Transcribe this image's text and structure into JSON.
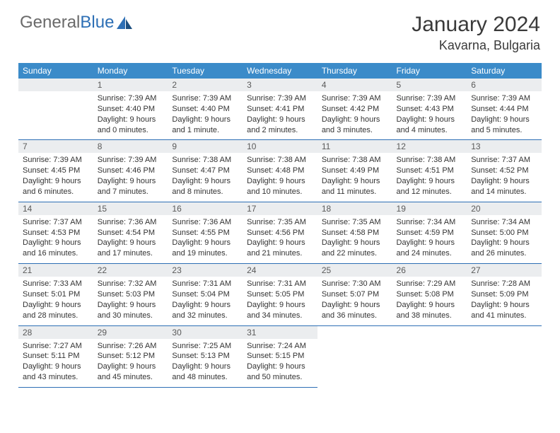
{
  "brand": {
    "part1": "General",
    "part2": "Blue"
  },
  "title": "January 2024",
  "location": "Kavarna, Bulgaria",
  "dayHeaders": [
    "Sunday",
    "Monday",
    "Tuesday",
    "Wednesday",
    "Thursday",
    "Friday",
    "Saturday"
  ],
  "colors": {
    "headerBg": "#3b8bc9",
    "dayNumBg": "#ebedef",
    "rowDivider": "#2d6fb5",
    "brandBlue": "#2d6fb5"
  },
  "weeks": [
    [
      null,
      {
        "n": "1",
        "sr": "Sunrise: 7:39 AM",
        "ss": "Sunset: 4:40 PM",
        "d1": "Daylight: 9 hours",
        "d2": "and 0 minutes."
      },
      {
        "n": "2",
        "sr": "Sunrise: 7:39 AM",
        "ss": "Sunset: 4:40 PM",
        "d1": "Daylight: 9 hours",
        "d2": "and 1 minute."
      },
      {
        "n": "3",
        "sr": "Sunrise: 7:39 AM",
        "ss": "Sunset: 4:41 PM",
        "d1": "Daylight: 9 hours",
        "d2": "and 2 minutes."
      },
      {
        "n": "4",
        "sr": "Sunrise: 7:39 AM",
        "ss": "Sunset: 4:42 PM",
        "d1": "Daylight: 9 hours",
        "d2": "and 3 minutes."
      },
      {
        "n": "5",
        "sr": "Sunrise: 7:39 AM",
        "ss": "Sunset: 4:43 PM",
        "d1": "Daylight: 9 hours",
        "d2": "and 4 minutes."
      },
      {
        "n": "6",
        "sr": "Sunrise: 7:39 AM",
        "ss": "Sunset: 4:44 PM",
        "d1": "Daylight: 9 hours",
        "d2": "and 5 minutes."
      }
    ],
    [
      {
        "n": "7",
        "sr": "Sunrise: 7:39 AM",
        "ss": "Sunset: 4:45 PM",
        "d1": "Daylight: 9 hours",
        "d2": "and 6 minutes."
      },
      {
        "n": "8",
        "sr": "Sunrise: 7:39 AM",
        "ss": "Sunset: 4:46 PM",
        "d1": "Daylight: 9 hours",
        "d2": "and 7 minutes."
      },
      {
        "n": "9",
        "sr": "Sunrise: 7:38 AM",
        "ss": "Sunset: 4:47 PM",
        "d1": "Daylight: 9 hours",
        "d2": "and 8 minutes."
      },
      {
        "n": "10",
        "sr": "Sunrise: 7:38 AM",
        "ss": "Sunset: 4:48 PM",
        "d1": "Daylight: 9 hours",
        "d2": "and 10 minutes."
      },
      {
        "n": "11",
        "sr": "Sunrise: 7:38 AM",
        "ss": "Sunset: 4:49 PM",
        "d1": "Daylight: 9 hours",
        "d2": "and 11 minutes."
      },
      {
        "n": "12",
        "sr": "Sunrise: 7:38 AM",
        "ss": "Sunset: 4:51 PM",
        "d1": "Daylight: 9 hours",
        "d2": "and 12 minutes."
      },
      {
        "n": "13",
        "sr": "Sunrise: 7:37 AM",
        "ss": "Sunset: 4:52 PM",
        "d1": "Daylight: 9 hours",
        "d2": "and 14 minutes."
      }
    ],
    [
      {
        "n": "14",
        "sr": "Sunrise: 7:37 AM",
        "ss": "Sunset: 4:53 PM",
        "d1": "Daylight: 9 hours",
        "d2": "and 16 minutes."
      },
      {
        "n": "15",
        "sr": "Sunrise: 7:36 AM",
        "ss": "Sunset: 4:54 PM",
        "d1": "Daylight: 9 hours",
        "d2": "and 17 minutes."
      },
      {
        "n": "16",
        "sr": "Sunrise: 7:36 AM",
        "ss": "Sunset: 4:55 PM",
        "d1": "Daylight: 9 hours",
        "d2": "and 19 minutes."
      },
      {
        "n": "17",
        "sr": "Sunrise: 7:35 AM",
        "ss": "Sunset: 4:56 PM",
        "d1": "Daylight: 9 hours",
        "d2": "and 21 minutes."
      },
      {
        "n": "18",
        "sr": "Sunrise: 7:35 AM",
        "ss": "Sunset: 4:58 PM",
        "d1": "Daylight: 9 hours",
        "d2": "and 22 minutes."
      },
      {
        "n": "19",
        "sr": "Sunrise: 7:34 AM",
        "ss": "Sunset: 4:59 PM",
        "d1": "Daylight: 9 hours",
        "d2": "and 24 minutes."
      },
      {
        "n": "20",
        "sr": "Sunrise: 7:34 AM",
        "ss": "Sunset: 5:00 PM",
        "d1": "Daylight: 9 hours",
        "d2": "and 26 minutes."
      }
    ],
    [
      {
        "n": "21",
        "sr": "Sunrise: 7:33 AM",
        "ss": "Sunset: 5:01 PM",
        "d1": "Daylight: 9 hours",
        "d2": "and 28 minutes."
      },
      {
        "n": "22",
        "sr": "Sunrise: 7:32 AM",
        "ss": "Sunset: 5:03 PM",
        "d1": "Daylight: 9 hours",
        "d2": "and 30 minutes."
      },
      {
        "n": "23",
        "sr": "Sunrise: 7:31 AM",
        "ss": "Sunset: 5:04 PM",
        "d1": "Daylight: 9 hours",
        "d2": "and 32 minutes."
      },
      {
        "n": "24",
        "sr": "Sunrise: 7:31 AM",
        "ss": "Sunset: 5:05 PM",
        "d1": "Daylight: 9 hours",
        "d2": "and 34 minutes."
      },
      {
        "n": "25",
        "sr": "Sunrise: 7:30 AM",
        "ss": "Sunset: 5:07 PM",
        "d1": "Daylight: 9 hours",
        "d2": "and 36 minutes."
      },
      {
        "n": "26",
        "sr": "Sunrise: 7:29 AM",
        "ss": "Sunset: 5:08 PM",
        "d1": "Daylight: 9 hours",
        "d2": "and 38 minutes."
      },
      {
        "n": "27",
        "sr": "Sunrise: 7:28 AM",
        "ss": "Sunset: 5:09 PM",
        "d1": "Daylight: 9 hours",
        "d2": "and 41 minutes."
      }
    ],
    [
      {
        "n": "28",
        "sr": "Sunrise: 7:27 AM",
        "ss": "Sunset: 5:11 PM",
        "d1": "Daylight: 9 hours",
        "d2": "and 43 minutes."
      },
      {
        "n": "29",
        "sr": "Sunrise: 7:26 AM",
        "ss": "Sunset: 5:12 PM",
        "d1": "Daylight: 9 hours",
        "d2": "and 45 minutes."
      },
      {
        "n": "30",
        "sr": "Sunrise: 7:25 AM",
        "ss": "Sunset: 5:13 PM",
        "d1": "Daylight: 9 hours",
        "d2": "and 48 minutes."
      },
      {
        "n": "31",
        "sr": "Sunrise: 7:24 AM",
        "ss": "Sunset: 5:15 PM",
        "d1": "Daylight: 9 hours",
        "d2": "and 50 minutes."
      },
      null,
      null,
      null
    ]
  ]
}
